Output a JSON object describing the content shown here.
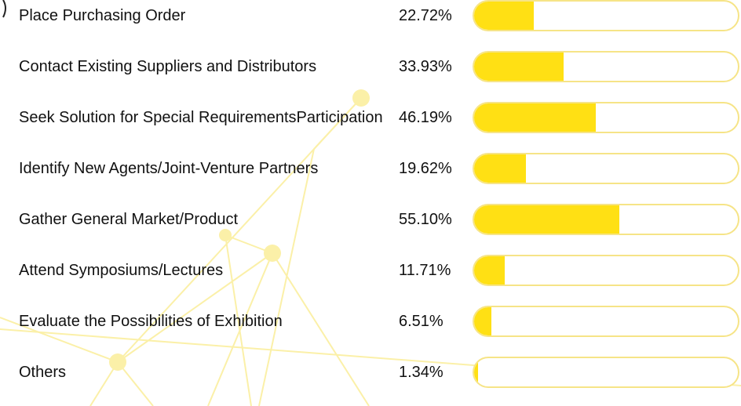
{
  "chart_data": {
    "type": "progress",
    "categories": [
      "Place Purchasing Order",
      "Contact Existing Suppliers and Distributors",
      "Seek Solution for Special RequirementsParticipation",
      "Identify New Agents/Joint-Venture Partners",
      "Gather General Market/Product",
      "Attend Symposiums/Lectures",
      "Evaluate the Possibilities of Exhibition",
      "Others"
    ],
    "values": [
      22.72,
      33.93,
      46.19,
      19.62,
      55.1,
      11.71,
      6.51,
      1.34
    ],
    "value_labels": [
      "22.72%",
      "33.93%",
      "46.19%",
      "19.62%",
      "55.10%",
      "11.71%",
      "6.51%",
      "1.34%"
    ],
    "xlim": [
      0,
      100
    ],
    "color": "#ffe014"
  }
}
